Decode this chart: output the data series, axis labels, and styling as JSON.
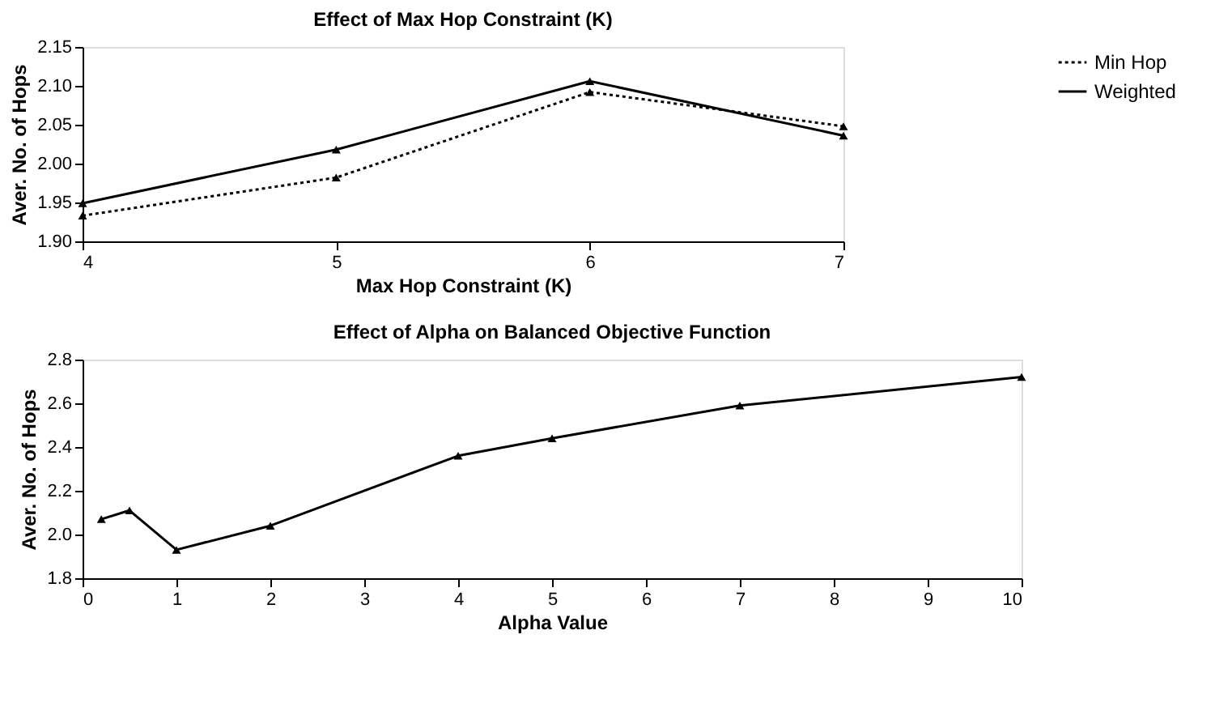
{
  "chart_data": [
    {
      "type": "line",
      "title": "Effect of  Max Hop Constraint (K)",
      "xlabel": "Max Hop Constraint (K)",
      "ylabel": "Aver. No. of Hops",
      "x": [
        4,
        5,
        6,
        7
      ],
      "xlim": [
        4,
        7
      ],
      "xticks": [
        4,
        5,
        6,
        7
      ],
      "ylim": [
        1.9,
        2.15
      ],
      "yticks": [
        {
          "value": 1.9,
          "label": "1.90"
        },
        1.95,
        {
          "value": 2.0,
          "label": "2.00"
        },
        2.05,
        {
          "value": 2.1,
          "label": "2.10"
        },
        2.15
      ],
      "grid": false,
      "legend": "right",
      "marker": "triangle",
      "series": [
        {
          "name": "Min Hop",
          "color": "#000000",
          "line_style": "dotted",
          "values": [
            1.933,
            1.982,
            2.092,
            2.048
          ]
        },
        {
          "name": "Weighted",
          "color": "#000000",
          "line_style": "solid",
          "values": [
            1.949,
            2.018,
            2.106,
            2.036
          ]
        }
      ]
    },
    {
      "type": "line",
      "title": "Effect of Alpha on Balanced Objective Function",
      "xlabel": "Alpha Value",
      "ylabel": "Aver. No. of Hops",
      "x": [
        0.2,
        0.5,
        1,
        2,
        4,
        5,
        7,
        10
      ],
      "xlim": [
        0,
        10
      ],
      "xticks": [
        0,
        1,
        2,
        3,
        4,
        5,
        6,
        7,
        8,
        9,
        10
      ],
      "ylim": [
        1.8,
        2.8
      ],
      "yticks": [
        1.8,
        {
          "value": 2.0,
          "label": "2.0"
        },
        2.2,
        2.4,
        2.6,
        2.8
      ],
      "grid": false,
      "legend": false,
      "marker": "triangle",
      "series": [
        {
          "color": "#000000",
          "line_style": "solid",
          "values": [
            2.07,
            2.11,
            1.93,
            2.04,
            2.36,
            2.44,
            2.59,
            2.72
          ]
        }
      ]
    }
  ]
}
